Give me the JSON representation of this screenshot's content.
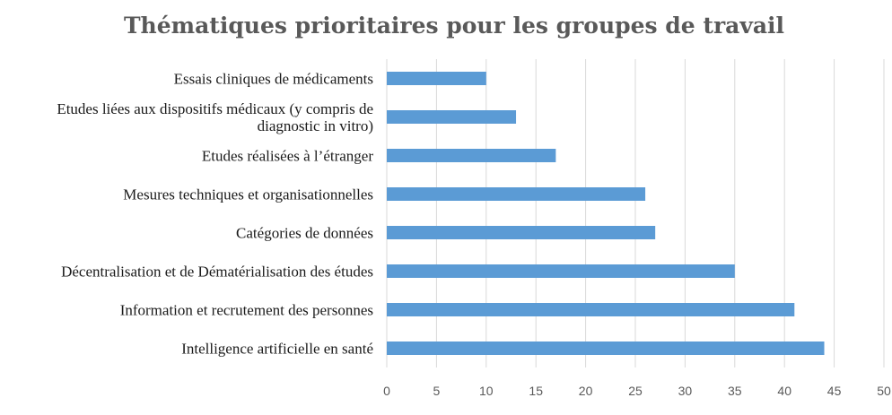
{
  "chart_data": {
    "type": "bar",
    "orientation": "horizontal",
    "title": "Thématiques prioritaires pour les groupes de travail",
    "categories": [
      [
        "Essais cliniques de médicaments"
      ],
      [
        "Etudes liées aux dispositifs médicaux (y compris de",
        "diagnostic in vitro)"
      ],
      [
        "Etudes réalisées à l’étranger"
      ],
      [
        "Mesures techniques et organisationnelles"
      ],
      [
        "Catégories de données"
      ],
      [
        "Décentralisation et de Dématérialisation des études"
      ],
      [
        "Information et recrutement des personnes"
      ],
      [
        "Intelligence artificielle en santé"
      ]
    ],
    "values": [
      10,
      13,
      17,
      26,
      27,
      35,
      41,
      44
    ],
    "xlim": [
      0,
      50
    ],
    "xticks": [
      "0",
      "5",
      "10",
      "15",
      "20",
      "25",
      "30",
      "35",
      "40",
      "45",
      "50"
    ],
    "grid": true,
    "legend": "none",
    "bar_color": "#5b9bd5"
  }
}
